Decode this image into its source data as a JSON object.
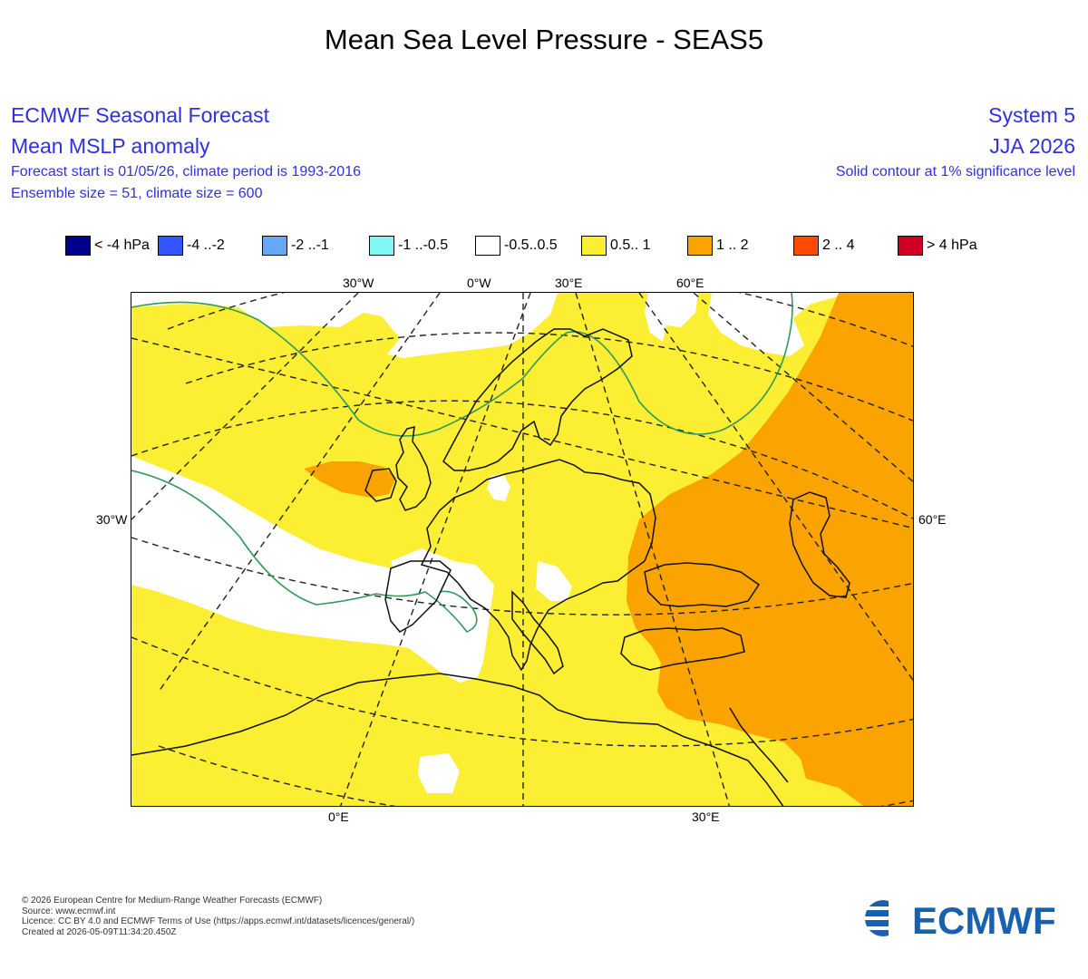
{
  "title": "Mean Sea Level Pressure - SEAS5",
  "header_left": {
    "line1": "ECMWF Seasonal Forecast",
    "line2": "Mean MSLP anomaly",
    "line3": "Forecast start is 01/05/26, climate period is 1993-2016",
    "line4": "Ensemble size = 51, climate size = 600"
  },
  "header_right": {
    "line1": "System 5",
    "line2": "JJA 2026",
    "line3": "Solid contour at 1% significance level"
  },
  "legend": [
    {
      "label": "< -4 hPa",
      "color": "#00008b"
    },
    {
      "label": "-4 ..-2",
      "color": "#3355ff"
    },
    {
      "label": "-2 ..-1",
      "color": "#66a8f5"
    },
    {
      "label": "-1 ..-0.5",
      "color": "#7ff7f5"
    },
    {
      "label": "-0.5..0.5",
      "color": "#ffffff"
    },
    {
      "label": "0.5.. 1",
      "color": "#fbee33"
    },
    {
      "label": "1 .. 2",
      "color": "#fba300"
    },
    {
      "label": "2 .. 4",
      "color": "#ff4a00"
    },
    {
      "label": "> 4 hPa",
      "color": "#d00021"
    }
  ],
  "axis_labels": {
    "top": [
      "30°W",
      "0°W",
      "30°E",
      "60°E"
    ],
    "left": "30°W",
    "right": "60°E",
    "bottom": [
      "0°E",
      "30°E"
    ]
  },
  "footer": [
    "© 2026 European Centre for Medium-Range Weather Forecasts (ECMWF)",
    "Source: www.ecmwf.int",
    "Licence: CC BY 4.0 and ECMWF Terms of Use (https://apps.ecmwf.int/datasets/licences/general/)",
    "Created at 2026-05-09T11:34:20.450Z"
  ],
  "logo_text": "ECMWF",
  "colors": {
    "header_text": "#3030e0",
    "significance_contour": "#2e9a5a",
    "yellow": "#fbee33",
    "orange": "#fba300",
    "white": "#ffffff"
  }
}
